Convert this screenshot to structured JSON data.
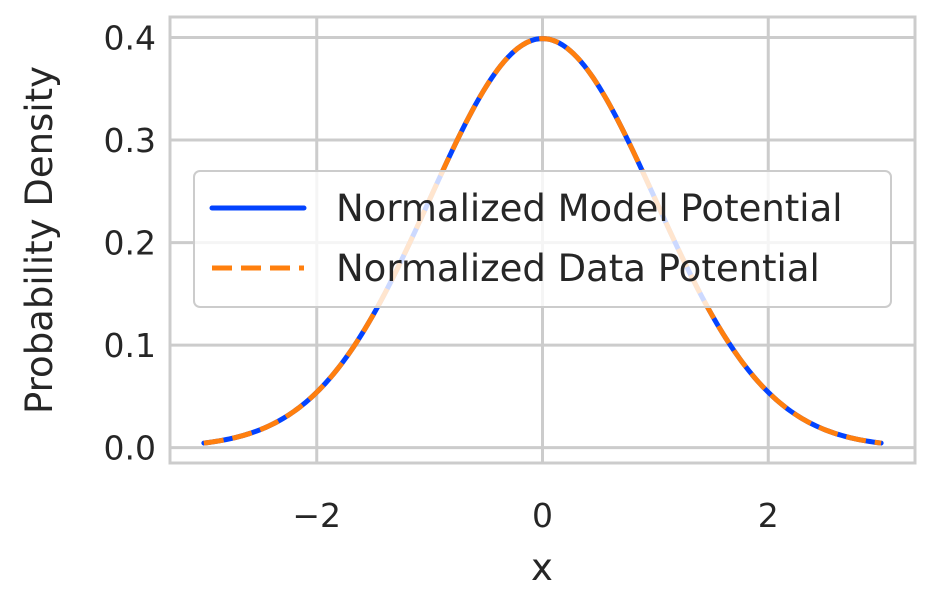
{
  "chart_data": {
    "type": "line",
    "xlabel": "x",
    "ylabel": "Probability Density",
    "xlim": [
      -3.3,
      3.3
    ],
    "ylim": [
      -0.015,
      0.42
    ],
    "xticks": [
      -2,
      0,
      2
    ],
    "xtick_labels": [
      "−2",
      "0",
      "2"
    ],
    "yticks": [
      0.0,
      0.1,
      0.2,
      0.3,
      0.4
    ],
    "ytick_labels": [
      "0.0",
      "0.1",
      "0.2",
      "0.3",
      "0.4"
    ],
    "grid": true,
    "legend_position": "center",
    "x": [
      -3.0,
      -2.75,
      -2.5,
      -2.25,
      -2.0,
      -1.75,
      -1.5,
      -1.25,
      -1.0,
      -0.75,
      -0.5,
      -0.25,
      0.0,
      0.25,
      0.5,
      0.75,
      1.0,
      1.25,
      1.5,
      1.75,
      2.0,
      2.25,
      2.5,
      2.75,
      3.0
    ],
    "series": [
      {
        "name": "Normalized Model Potential",
        "color": "#0343ff",
        "style": "solid",
        "values": [
          0.0044,
          0.0091,
          0.0175,
          0.0317,
          0.054,
          0.0863,
          0.1295,
          0.1826,
          0.242,
          0.3011,
          0.3521,
          0.3867,
          0.3989,
          0.3867,
          0.3521,
          0.3011,
          0.242,
          0.1826,
          0.1295,
          0.0863,
          0.054,
          0.0317,
          0.0175,
          0.0091,
          0.0044
        ]
      },
      {
        "name": "Normalized Data Potential",
        "color": "#ff7f0e",
        "style": "dashed",
        "values": [
          0.0044,
          0.0091,
          0.0175,
          0.0317,
          0.054,
          0.0863,
          0.1295,
          0.1826,
          0.242,
          0.3011,
          0.3521,
          0.3867,
          0.3989,
          0.3867,
          0.3521,
          0.3011,
          0.242,
          0.1826,
          0.1295,
          0.0863,
          0.054,
          0.0317,
          0.0175,
          0.0091,
          0.0044
        ]
      }
    ]
  }
}
